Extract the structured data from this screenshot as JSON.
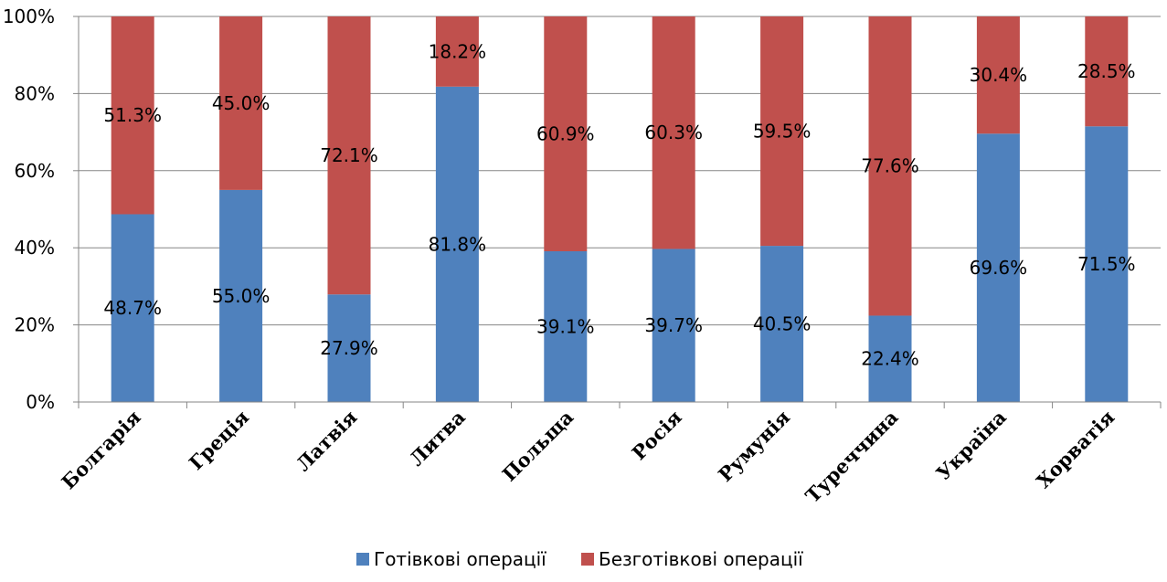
{
  "chart_data": {
    "type": "bar",
    "stacked": true,
    "categories": [
      "Болгарія",
      "Греція",
      "Латвія",
      "Литва",
      "Польща",
      "Росія",
      "Румунія",
      "Туреччина",
      "Україна",
      "Хорватія"
    ],
    "series": [
      {
        "name": "Готівкові операції",
        "color": "#4f81bd",
        "values": [
          48.7,
          55.0,
          27.9,
          81.8,
          39.1,
          39.7,
          40.5,
          22.4,
          69.6,
          71.5
        ],
        "labels": [
          "48.7%",
          "55.0%",
          "27.9%",
          "81.8%",
          "39.1%",
          "39.7%",
          "40.5%",
          "22.4%",
          "69.6%",
          "71.5%"
        ]
      },
      {
        "name": "Безготівкові операції",
        "color": "#c0504d",
        "values": [
          51.3,
          45.0,
          72.1,
          18.2,
          60.9,
          60.3,
          59.5,
          77.6,
          30.4,
          28.5
        ],
        "labels": [
          "51.3%",
          "45.0%",
          "72.1%",
          "18.2%",
          "60.9%",
          "60.3%",
          "59.5%",
          "77.6%",
          "30.4%",
          "28.5%"
        ]
      }
    ],
    "ylim": [
      0,
      100
    ],
    "yticks": [
      {
        "value": 0,
        "label": "0%"
      },
      {
        "value": 20,
        "label": "20%"
      },
      {
        "value": 40,
        "label": "40%"
      },
      {
        "value": 60,
        "label": "60%"
      },
      {
        "value": 80,
        "label": "80%"
      },
      {
        "value": 100,
        "label": "100%"
      }
    ],
    "grid": true,
    "legend_position": "bottom",
    "title": "",
    "xlabel": "",
    "ylabel": ""
  }
}
